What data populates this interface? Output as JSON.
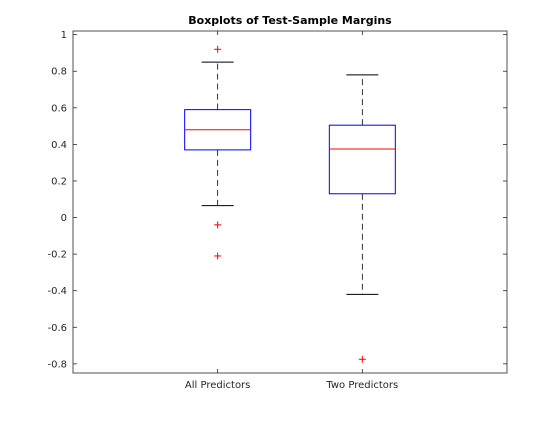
{
  "chart_data": {
    "type": "box",
    "title": "Boxplots of Test-Sample Margins",
    "xlabel": "",
    "ylabel": "",
    "ylim": [
      -0.85,
      1.02
    ],
    "yticks": [
      -0.8,
      -0.6,
      -0.4,
      -0.2,
      0,
      0.2,
      0.4,
      0.6,
      0.8,
      1
    ],
    "ytick_labels": [
      "-0.8",
      "-0.6",
      "-0.4",
      "-0.2",
      "0",
      "0.2",
      "0.4",
      "0.6",
      "0.8",
      "1"
    ],
    "categories": [
      "All Predictors",
      "Two Predictors"
    ],
    "boxes": [
      {
        "whisker_low": 0.065,
        "q1": 0.37,
        "median": 0.48,
        "q3": 0.59,
        "whisker_high": 0.85,
        "outliers": [
          0.92,
          -0.04,
          -0.21
        ]
      },
      {
        "whisker_low": -0.42,
        "q1": 0.13,
        "median": 0.375,
        "q3": 0.505,
        "whisker_high": 0.78,
        "outliers": [
          -0.775
        ]
      }
    ],
    "grid": false,
    "colors": {
      "box": "#0000ff",
      "median": "#ff0000",
      "whisker": "#000000",
      "outlier": "#ff0000",
      "axes": "#262626"
    }
  }
}
